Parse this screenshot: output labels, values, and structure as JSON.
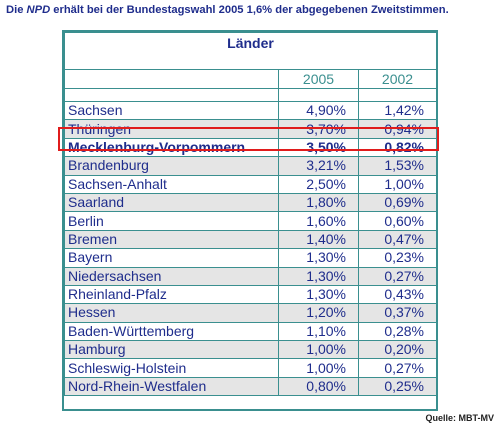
{
  "header": {
    "pre": "Die ",
    "party": "NPD",
    "post": " erhält bei der Bundestagswahl 2005 1,6% der abgegebenen Zweitstimmen."
  },
  "table": {
    "group_label": "Länder",
    "year_a": "2005",
    "year_b": "2002",
    "rows": [
      {
        "land": "Sachsen",
        "v2005": "4,90%",
        "v2002": "1,42%"
      },
      {
        "land": "Thüringen",
        "v2005": "3,70%",
        "v2002": "0,94%"
      },
      {
        "land": "Mecklenburg-Vorpommern",
        "v2005": "3,50%",
        "v2002": "0,82%"
      },
      {
        "land": "Brandenburg",
        "v2005": "3,21%",
        "v2002": "1,53%"
      },
      {
        "land": "Sachsen-Anhalt",
        "v2005": "2,50%",
        "v2002": "1,00%"
      },
      {
        "land": "Saarland",
        "v2005": "1,80%",
        "v2002": "0,69%"
      },
      {
        "land": "Berlin",
        "v2005": "1,60%",
        "v2002": "0,60%"
      },
      {
        "land": "Bremen",
        "v2005": "1,40%",
        "v2002": "0,47%"
      },
      {
        "land": "Bayern",
        "v2005": "1,30%",
        "v2002": "0,23%"
      },
      {
        "land": "Niedersachsen",
        "v2005": "1,30%",
        "v2002": "0,27%"
      },
      {
        "land": "Rheinland-Pfalz",
        "v2005": "1,30%",
        "v2002": "0,43%"
      },
      {
        "land": "Hessen",
        "v2005": "1,20%",
        "v2002": "0,37%"
      },
      {
        "land": "Baden-Württemberg",
        "v2005": "1,10%",
        "v2002": "0,28%"
      },
      {
        "land": "Hamburg",
        "v2005": "1,00%",
        "v2002": "0,20%"
      },
      {
        "land": "Schleswig-Holstein",
        "v2005": "1,00%",
        "v2002": "0,27%"
      },
      {
        "land": "Nord-Rhein-Westfalen",
        "v2005": "0,80%",
        "v2002": "0,25%"
      }
    ]
  },
  "source": "Quelle: MBT-MV",
  "colors": {
    "text": "#1f2d8c",
    "border": "#3a8f8f",
    "shade": "#e5e5e5",
    "highlight": "#e01c1c"
  }
}
